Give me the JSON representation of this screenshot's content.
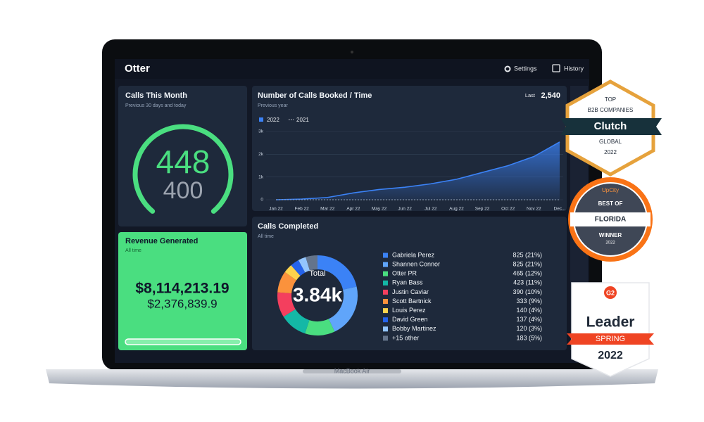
{
  "header": {
    "logo": "Otter",
    "nav": [
      "Settings",
      "History"
    ]
  },
  "calls_this_month": {
    "title": "Calls This Month",
    "subtitle": "Previous 30 days and today",
    "value": "448",
    "target": "400"
  },
  "revenue": {
    "title": "Revenue Generated",
    "subtitle": "All time",
    "value": "$8,114,213.19",
    "secondary": "$2,376,839.9"
  },
  "chart_data": [
    {
      "type": "line",
      "title": "Number of Calls Booked / Time",
      "subtitle": "Previous year",
      "annotation_label": "Last",
      "annotation": "2,540",
      "categories": [
        "Jan 22",
        "Feb 22",
        "Mar 22",
        "Apr 22",
        "May 22",
        "Jun 22",
        "Jul 22",
        "Aug 22",
        "Sep 22",
        "Oct 22",
        "Nov 22",
        "Dec..."
      ],
      "series": [
        {
          "name": "2022",
          "color": "#3b82f6",
          "values": [
            0,
            30,
            100,
            300,
            450,
            550,
            700,
            900,
            1200,
            1500,
            1900,
            2540
          ]
        },
        {
          "name": "2021",
          "color": "#94a3b8",
          "values": [
            0,
            0,
            0,
            0,
            0,
            0,
            0,
            0,
            0,
            0,
            0,
            0
          ]
        }
      ],
      "ylim": [
        0,
        3000
      ],
      "yticks": [
        0,
        {
          "value": 1000,
          "label": "1k"
        },
        {
          "value": 2000,
          "label": "2k"
        },
        {
          "value": 3000,
          "label": "3k"
        }
      ],
      "grid": true
    },
    {
      "type": "pie",
      "title": "Calls Completed",
      "subtitle": "All time",
      "center_label": "Total",
      "center_value": "3.84k",
      "categories": [
        "Gabriela Perez",
        "Shannen Connor",
        "Otter PR",
        "Ryan Bass",
        "Justin Caviar",
        "Scott Bartnick",
        "Louis Perez",
        "David Green",
        "Bobby Martinez",
        "+15 other"
      ],
      "values": [
        825,
        825,
        465,
        423,
        390,
        333,
        140,
        137,
        120,
        183
      ],
      "value_labels": [
        "825 (21%)",
        "825 (21%)",
        "465 (12%)",
        "423 (11%)",
        "390 (10%)",
        "333 (9%)",
        "140 (4%)",
        "137 (4%)",
        "120 (3%)",
        "183 (5%)"
      ],
      "colors": [
        "#3b82f6",
        "#60a5fa",
        "#4ade80",
        "#14b8a6",
        "#f43f5e",
        "#fb923c",
        "#fcd34d",
        "#2563eb",
        "#93c5fd",
        "#64748b"
      ]
    }
  ],
  "laptop": {
    "label": "MacBook Air"
  },
  "badges": {
    "clutch": {
      "top": "TOP",
      "line": "B2B COMPANIES",
      "brand": "Clutch",
      "scope": "GLOBAL",
      "year": "2022"
    },
    "upcity": {
      "brand": "UpCity",
      "top": "BEST OF",
      "place": "FLORIDA",
      "award": "WINNER",
      "year": "2022"
    },
    "g2": {
      "brand": "G2",
      "title": "Leader",
      "season": "SPRING",
      "year": "2022"
    }
  }
}
